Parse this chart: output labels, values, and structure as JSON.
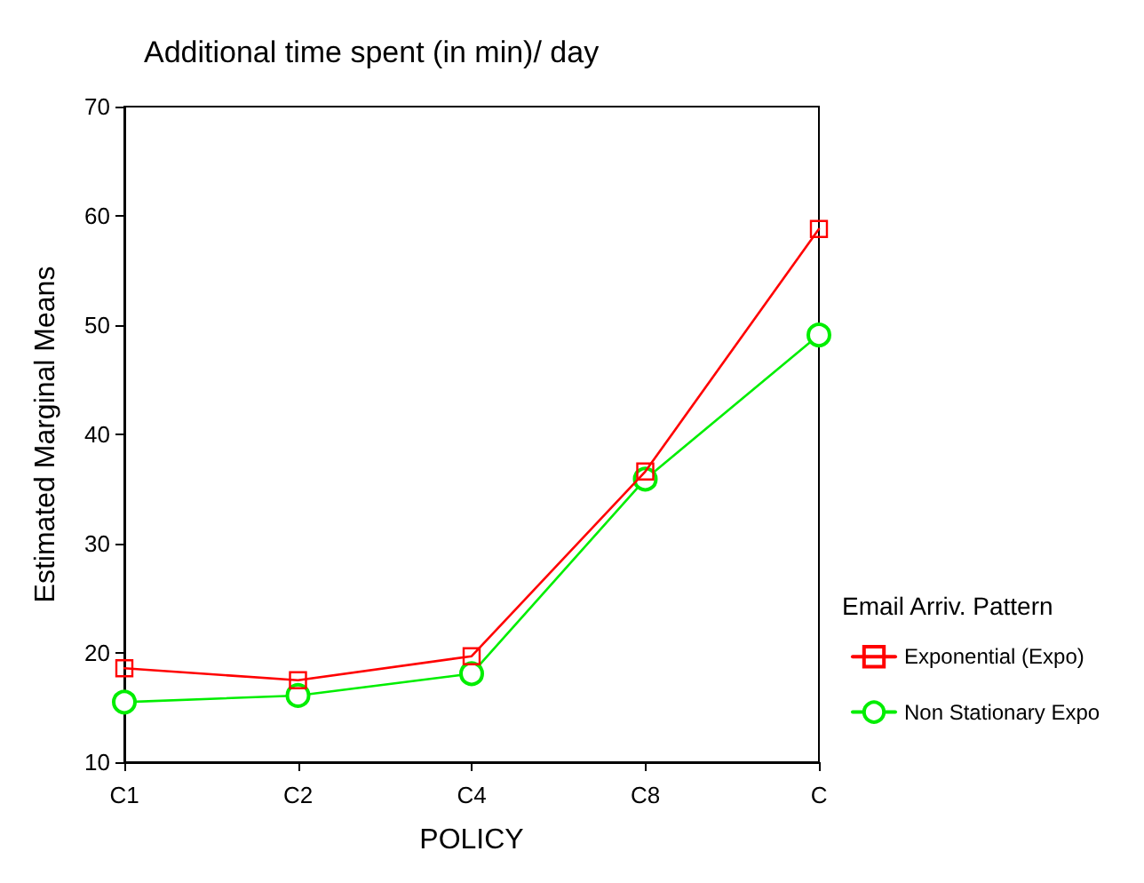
{
  "chart_data": {
    "type": "line",
    "title": "Additional time spent (in min)/ day",
    "xlabel": "POLICY",
    "ylabel": "Estimated Marginal Means",
    "legend_title": "Email Arriv. Pattern",
    "categories": [
      "C1",
      "C2",
      "C4",
      "C8",
      "C"
    ],
    "series": [
      {
        "name": "Exponential (Expo)",
        "color": "#ff0000",
        "marker": "square",
        "values": [
          18.6,
          17.5,
          19.7,
          36.6,
          58.8
        ]
      },
      {
        "name": "Non Stationary Expo",
        "color": "#00ee00",
        "marker": "circle",
        "values": [
          15.5,
          16.1,
          18.1,
          35.9,
          49.1
        ]
      }
    ],
    "ylim": [
      10,
      70
    ],
    "yticks": [
      10,
      20,
      30,
      40,
      50,
      60,
      70
    ],
    "grid": false,
    "legend": "right",
    "line_style": "solid"
  }
}
